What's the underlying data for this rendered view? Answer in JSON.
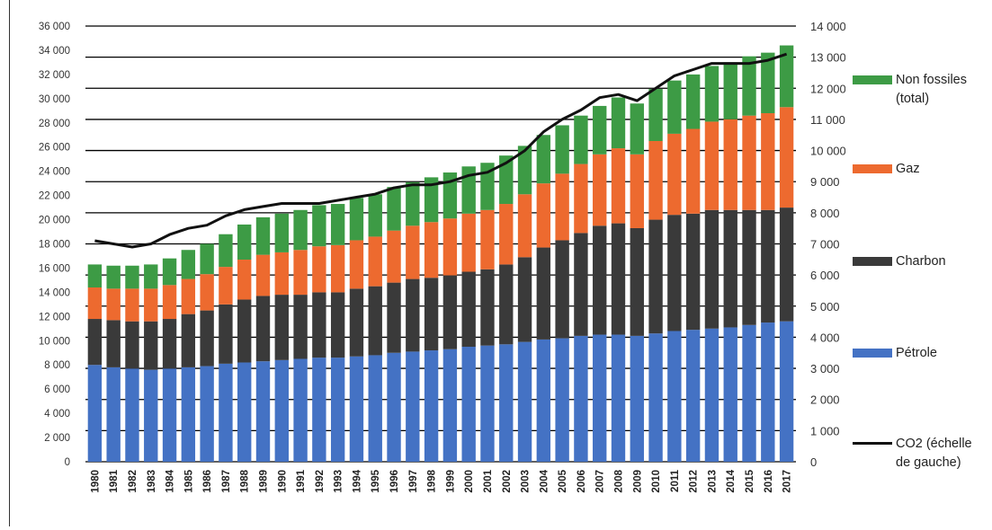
{
  "chart_data": {
    "type": "bar",
    "stacked": true,
    "categories": [
      "1980",
      "1981",
      "1982",
      "1983",
      "1984",
      "1985",
      "1986",
      "1987",
      "1988",
      "1989",
      "1990",
      "1991",
      "1992",
      "1993",
      "1994",
      "1995",
      "1996",
      "1997",
      "1998",
      "1999",
      "2000",
      "2001",
      "2002",
      "2003",
      "2004",
      "2005",
      "2006",
      "2007",
      "2008",
      "2009",
      "2010",
      "2011",
      "2012",
      "2013",
      "2014",
      "2015",
      "2016",
      "2017"
    ],
    "series": [
      {
        "name": "Pétrole",
        "color": "#4472C4",
        "axis": "left",
        "values": [
          8000,
          7800,
          7700,
          7600,
          7700,
          7800,
          7900,
          8100,
          8200,
          8300,
          8400,
          8500,
          8600,
          8600,
          8700,
          8800,
          9000,
          9100,
          9200,
          9300,
          9500,
          9600,
          9700,
          9900,
          10100,
          10200,
          10400,
          10500,
          10500,
          10400,
          10600,
          10800,
          10900,
          11000,
          11100,
          11300,
          11500,
          11600
        ]
      },
      {
        "name": "Charbon",
        "color": "#3A3A3A",
        "axis": "left",
        "values": [
          3800,
          3900,
          3900,
          4000,
          4100,
          4400,
          4600,
          4900,
          5200,
          5400,
          5400,
          5300,
          5400,
          5400,
          5600,
          5700,
          5800,
          6000,
          6000,
          6100,
          6200,
          6300,
          6600,
          7000,
          7600,
          8100,
          8500,
          9000,
          9200,
          8900,
          9400,
          9600,
          9600,
          9800,
          9700,
          9500,
          9300,
          9400
        ]
      },
      {
        "name": "Gaz",
        "color": "#ED6A2F",
        "axis": "left",
        "values": [
          2600,
          2600,
          2700,
          2700,
          2800,
          2900,
          3000,
          3100,
          3300,
          3400,
          3500,
          3700,
          3800,
          3900,
          4000,
          4100,
          4300,
          4400,
          4600,
          4700,
          4800,
          4900,
          5000,
          5200,
          5300,
          5500,
          5700,
          5900,
          6200,
          6100,
          6500,
          6700,
          7000,
          7300,
          7500,
          7800,
          8000,
          8300
        ]
      },
      {
        "name": "Non fossiles (total)",
        "color": "#3D9B45",
        "axis": "left",
        "values": [
          1900,
          1900,
          1900,
          2000,
          2200,
          2400,
          2500,
          2700,
          2900,
          3100,
          3200,
          3300,
          3400,
          3400,
          3500,
          3500,
          3600,
          3600,
          3700,
          3800,
          3900,
          3900,
          4000,
          4000,
          4000,
          4000,
          4000,
          4000,
          4200,
          4200,
          4300,
          4400,
          4500,
          4600,
          4700,
          4900,
          5000,
          5100
        ]
      },
      {
        "name": "CO2 (échelle de gauche)",
        "type": "line",
        "color": "#111111",
        "axis": "right",
        "values": [
          7100,
          7000,
          6900,
          7000,
          7300,
          7500,
          7600,
          7900,
          8100,
          8200,
          8300,
          8300,
          8300,
          8400,
          8500,
          8600,
          8800,
          8900,
          8900,
          9000,
          9200,
          9300,
          9600,
          10000,
          10600,
          11000,
          11300,
          11700,
          11800,
          11600,
          12000,
          12400,
          12600,
          12800,
          12800,
          12800,
          12900,
          13100
        ]
      }
    ],
    "ylim": [
      0,
      36000
    ],
    "y2lim": [
      0,
      14000
    ],
    "yticks": [
      "0",
      "2 000",
      "4 000",
      "6 000",
      "8 000",
      "10 000",
      "12 000",
      "14 000",
      "16 000",
      "18 000",
      "20 000",
      "22 000",
      "24 000",
      "26 000",
      "28 000",
      "30 000",
      "32 000",
      "34 000",
      "36 000"
    ],
    "y2ticks": [
      "0",
      "1 000",
      "2 000",
      "3 000",
      "4 000",
      "5 000",
      "6 000",
      "7 000",
      "8 000",
      "9 000",
      "10 000",
      "11 000",
      "12 000",
      "13 000",
      "14 000"
    ],
    "grid": "horizontal (right axis)",
    "legend_position": "right"
  },
  "legend": {
    "non_fossiles": "Non fossiles\n(total)",
    "gaz": "Gaz",
    "charbon": "Charbon",
    "petrole": "Pétrole",
    "co2": "CO2 (échelle\nde gauche)"
  }
}
